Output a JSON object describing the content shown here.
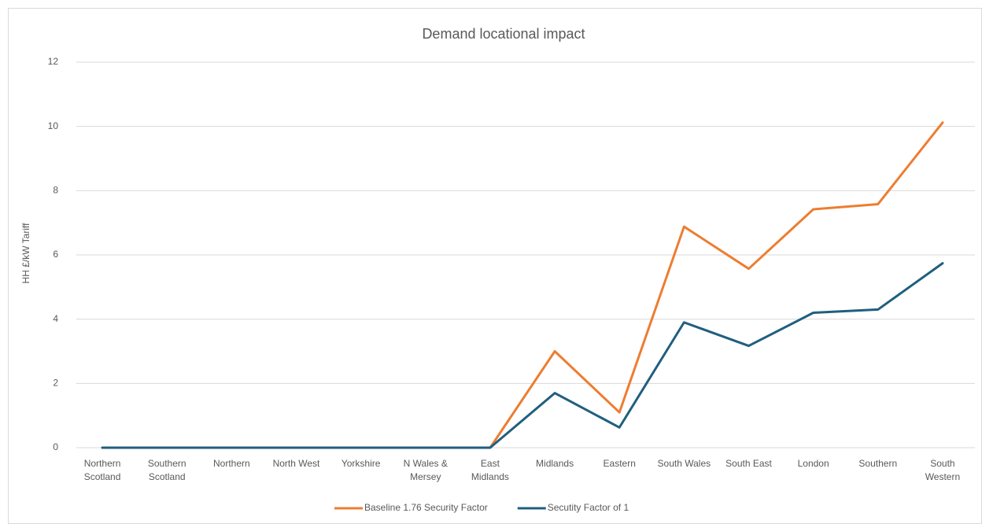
{
  "chart_data": {
    "type": "line",
    "title": "Demand locational impact",
    "y_label": "HH £/kW Tariff",
    "categories": [
      "Northern Scotland",
      "Southern Scotland",
      "Northern",
      "North West",
      "Yorkshire",
      "N Wales & Mersey",
      "East Midlands",
      "Midlands",
      "Eastern",
      "South Wales",
      "South East",
      "London",
      "Southern",
      "South Western"
    ],
    "series": [
      {
        "name": "Baseline 1.76 Security Factor",
        "color": "#ed7d31",
        "values": [
          0,
          0,
          0,
          0,
          0,
          0,
          0,
          3.0,
          1.1,
          6.88,
          5.57,
          7.42,
          7.58,
          10.12
        ]
      },
      {
        "name": "Secutity Factor of 1",
        "color": "#1f5f7f",
        "values": [
          0,
          0,
          0,
          0,
          0,
          0,
          0,
          1.7,
          0.63,
          3.9,
          3.17,
          4.2,
          4.3,
          5.74
        ]
      }
    ],
    "ylim": [
      0,
      12
    ],
    "yticks": [
      0,
      2,
      4,
      6,
      8,
      10,
      12
    ],
    "grid": true,
    "legend": "bottom"
  }
}
